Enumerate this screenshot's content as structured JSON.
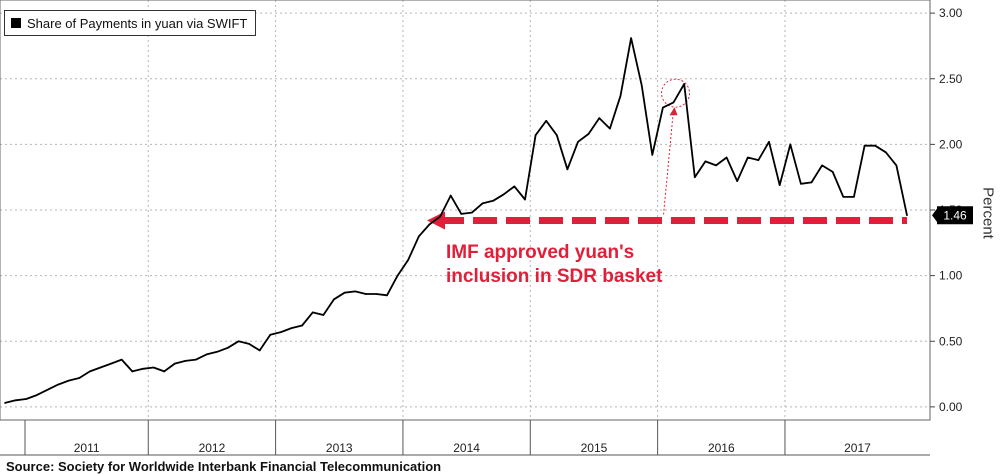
{
  "chart_data": {
    "type": "line",
    "title": "",
    "legend": "Share of Payments in yuan via SWIFT",
    "ylabel": "Percent",
    "ylim": [
      -0.1,
      3.1
    ],
    "yticks": [
      "0.00",
      "0.50",
      "1.00",
      "1.50",
      "2.00",
      "2.50",
      "3.00"
    ],
    "year_labels": [
      "2011",
      "2012",
      "2013",
      "2014",
      "2015",
      "2016",
      "2017"
    ],
    "grid": true,
    "last_value_label": "1.46",
    "series": [
      {
        "values": [
          0.03,
          0.05,
          0.06,
          0.09,
          0.13,
          0.17,
          0.2,
          0.22,
          0.27,
          0.3,
          0.33,
          0.36,
          0.27,
          0.29,
          0.3,
          0.27,
          0.33,
          0.35,
          0.36,
          0.4,
          0.42,
          0.45,
          0.5,
          0.48,
          0.43,
          0.55,
          0.57,
          0.6,
          0.62,
          0.72,
          0.7,
          0.82,
          0.87,
          0.88,
          0.86,
          0.86,
          0.85,
          1.0,
          1.12,
          1.3,
          1.39,
          1.45,
          1.61,
          1.47,
          1.48,
          1.55,
          1.57,
          1.62,
          1.68,
          1.58,
          2.07,
          2.18,
          2.07,
          1.81,
          2.02,
          2.08,
          2.2,
          2.12,
          2.37,
          2.81,
          2.45,
          1.92,
          2.28,
          2.32,
          2.46,
          1.75,
          1.87,
          1.84,
          1.9,
          1.72,
          1.9,
          1.88,
          2.02,
          1.69,
          2.0,
          1.7,
          1.71,
          1.84,
          1.79,
          1.6,
          1.6,
          1.99,
          1.99,
          1.94,
          1.84,
          1.46
        ]
      }
    ],
    "annotation": {
      "line1": "IMF approved yuan's",
      "line2": "inclusion in SDR basket"
    },
    "colors": {
      "line": "#000000",
      "annotation": "#e0203a",
      "grid": "#b5b5b5"
    }
  },
  "source": "Source:  Society for Worldwide Interbank Financial Telecommunication"
}
